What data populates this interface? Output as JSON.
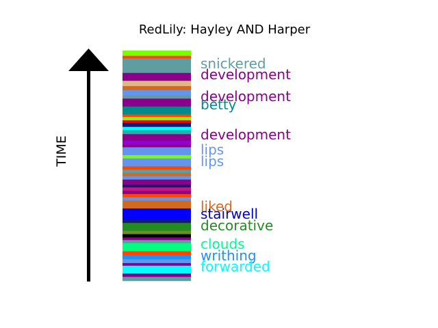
{
  "chart_data": {
    "type": "bar",
    "title": "RedLily: Hayley AND Harper",
    "axis_label": "TIME",
    "stripes": [
      {
        "color": "#7CFC00",
        "value": 0.8
      },
      {
        "color": "#FF4500",
        "value": 0.4
      },
      {
        "color": "#5F9EA0",
        "value": 2.2
      },
      {
        "color": "#8B008B",
        "value": 1.2
      },
      {
        "color": "#DEB887",
        "value": 0.8
      },
      {
        "color": "#D2691E",
        "value": 0.6
      },
      {
        "color": "#6495ED",
        "value": 0.8
      },
      {
        "color": "#5F9EA0",
        "value": 0.5
      },
      {
        "color": "#8B008B",
        "value": 1.2
      },
      {
        "color": "#008B8B",
        "value": 1.2
      },
      {
        "color": "#FF4500",
        "value": 0.4
      },
      {
        "color": "#7CFC00",
        "value": 0.5
      },
      {
        "color": "#FF0000",
        "value": 0.4
      },
      {
        "color": "#191970",
        "value": 0.6
      },
      {
        "color": "#00FFFF",
        "value": 0.5
      },
      {
        "color": "#20B2AA",
        "value": 0.6
      },
      {
        "color": "#8B008B",
        "value": 1.0
      },
      {
        "color": "#9400D3",
        "value": 0.6
      },
      {
        "color": "#8B008B",
        "value": 0.4
      },
      {
        "color": "#6495ED",
        "value": 1.2
      },
      {
        "color": "#7CFC00",
        "value": 0.5
      },
      {
        "color": "#6495ED",
        "value": 1.2
      },
      {
        "color": "#FF4500",
        "value": 0.5
      },
      {
        "color": "#5F9EA0",
        "value": 0.5
      },
      {
        "color": "#D2691E",
        "value": 0.5
      },
      {
        "color": "#6495ED",
        "value": 0.5
      },
      {
        "color": "#8B008B",
        "value": 0.8
      },
      {
        "color": "#191970",
        "value": 0.4
      },
      {
        "color": "#C71585",
        "value": 0.5
      },
      {
        "color": "#8B008B",
        "value": 0.5
      },
      {
        "color": "#FF4500",
        "value": 0.5
      },
      {
        "color": "#6495ED",
        "value": 0.5
      },
      {
        "color": "#D2691E",
        "value": 1.2
      },
      {
        "color": "#0000FF",
        "value": 1.7
      },
      {
        "color": "#191970",
        "value": 0.5
      },
      {
        "color": "#228B22",
        "value": 1.2
      },
      {
        "color": "#6B8E23",
        "value": 0.5
      },
      {
        "color": "#000000",
        "value": 0.5
      },
      {
        "color": "#8B008B",
        "value": 0.4
      },
      {
        "color": "#5F9EA0",
        "value": 0.5
      },
      {
        "color": "#00FF7F",
        "value": 1.2
      },
      {
        "color": "#FF4500",
        "value": 0.6
      },
      {
        "color": "#1E90FF",
        "value": 0.6
      },
      {
        "color": "#6495ED",
        "value": 0.6
      },
      {
        "color": "#8B008B",
        "value": 0.4
      },
      {
        "color": "#00FFFF",
        "value": 1.2
      },
      {
        "color": "#8B008B",
        "value": 0.5
      },
      {
        "color": "#5F9EA0",
        "value": 0.6
      }
    ],
    "annotations": [
      {
        "text": "snickered",
        "color": "#5F9EA0"
      },
      {
        "text": "development",
        "color": "#8B008B"
      },
      {
        "text": "development",
        "color": "#8B008B"
      },
      {
        "text": "betty",
        "color": "#008B8B"
      },
      {
        "text": "development",
        "color": "#8B008B"
      },
      {
        "text": "lips",
        "color": "#6495ED"
      },
      {
        "text": "lips",
        "color": "#6495ED"
      },
      {
        "text": "liked",
        "color": "#D2691E"
      },
      {
        "text": "stairwell",
        "color": "#0000CD"
      },
      {
        "text": "decorative",
        "color": "#228B22"
      },
      {
        "text": "clouds",
        "color": "#00FA9A"
      },
      {
        "text": "writhing",
        "color": "#1E90FF"
      },
      {
        "text": "forwarded",
        "color": "#00FFFF"
      }
    ]
  }
}
